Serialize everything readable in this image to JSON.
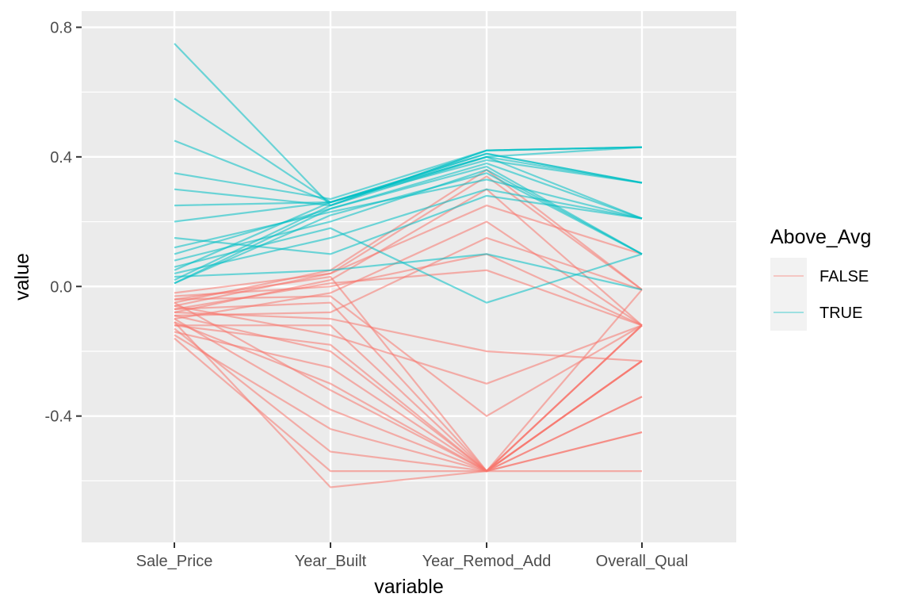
{
  "chart_data": {
    "type": "parallel_coordinates",
    "xlabel": "variable",
    "ylabel": "value",
    "categories": [
      "Sale_Price",
      "Year_Built",
      "Year_Remod_Add",
      "Overall_Qual"
    ],
    "y_ticks": [
      -0.4,
      0.0,
      0.4,
      0.8
    ],
    "y_tick_labels": [
      "-0.4",
      "0.0",
      "0.4",
      "0.8"
    ],
    "ylim": [
      -0.79,
      0.85
    ],
    "grid": true,
    "legend": {
      "title": "Above_Avg",
      "position": "right",
      "entries": [
        {
          "label": "FALSE",
          "color": "#F8766D"
        },
        {
          "label": "TRUE",
          "color": "#00BFC4"
        }
      ]
    },
    "colors": {
      "panel_background": "#EBEBEB",
      "grid": "#FFFFFF",
      "FALSE": "#F8766D",
      "TRUE": "#00BFC4"
    },
    "series": [
      {
        "name": "FALSE",
        "profiles": [
          [
            -0.05,
            0.05,
            0.36,
            -0.01
          ],
          [
            -0.08,
            0.02,
            0.3,
            -0.12
          ],
          [
            -0.1,
            -0.02,
            0.2,
            -0.12
          ],
          [
            -0.06,
            0.04,
            0.34,
            -0.01
          ],
          [
            -0.12,
            -0.12,
            -0.57,
            -0.23
          ],
          [
            -0.14,
            -0.25,
            -0.57,
            -0.23
          ],
          [
            -0.09,
            -0.2,
            -0.57,
            -0.12
          ],
          [
            -0.11,
            -0.3,
            -0.57,
            -0.34
          ],
          [
            -0.15,
            -0.44,
            -0.57,
            -0.23
          ],
          [
            -0.13,
            -0.51,
            -0.57,
            -0.45
          ],
          [
            -0.07,
            -0.05,
            -0.57,
            -0.12
          ],
          [
            -0.04,
            0.03,
            -0.57,
            -0.01
          ],
          [
            -0.1,
            -0.38,
            -0.57,
            -0.12
          ],
          [
            -0.03,
            0.0,
            0.1,
            -0.12
          ],
          [
            -0.08,
            -0.1,
            -0.2,
            -0.23
          ],
          [
            -0.06,
            -0.15,
            -0.3,
            -0.12
          ],
          [
            -0.12,
            -0.18,
            -0.57,
            -0.57
          ],
          [
            -0.02,
            0.04,
            0.25,
            0.1
          ],
          [
            -0.09,
            -0.08,
            0.15,
            -0.01
          ],
          [
            -0.05,
            -0.32,
            -0.57,
            -0.23
          ],
          [
            -0.16,
            -0.57,
            -0.57,
            -0.34
          ],
          [
            -0.11,
            -0.62,
            -0.57,
            -0.45
          ],
          [
            -0.07,
            0.01,
            0.05,
            -0.12
          ],
          [
            -0.04,
            -0.03,
            -0.4,
            -0.12
          ]
        ]
      },
      {
        "name": "TRUE",
        "profiles": [
          [
            0.02,
            0.25,
            0.42,
            0.43
          ],
          [
            0.05,
            0.26,
            0.4,
            0.32
          ],
          [
            0.1,
            0.24,
            0.38,
            0.21
          ],
          [
            0.2,
            0.26,
            0.41,
            0.32
          ],
          [
            0.35,
            0.27,
            0.42,
            0.43
          ],
          [
            0.58,
            0.26,
            0.4,
            0.43
          ],
          [
            0.75,
            0.25,
            0.42,
            0.43
          ],
          [
            0.01,
            0.22,
            0.35,
            0.1
          ],
          [
            0.04,
            0.15,
            0.3,
            0.21
          ],
          [
            0.08,
            0.2,
            0.36,
            0.1
          ],
          [
            0.15,
            0.1,
            0.28,
            0.21
          ],
          [
            0.03,
            0.05,
            0.1,
            -0.01
          ],
          [
            0.25,
            0.26,
            0.39,
            0.32
          ],
          [
            0.12,
            0.23,
            0.33,
            0.21
          ],
          [
            0.06,
            0.18,
            -0.05,
            0.1
          ],
          [
            0.45,
            0.26,
            0.41,
            0.32
          ],
          [
            0.01,
            0.24,
            0.37,
            0.1
          ],
          [
            0.3,
            0.25,
            0.4,
            0.21
          ]
        ]
      }
    ]
  }
}
